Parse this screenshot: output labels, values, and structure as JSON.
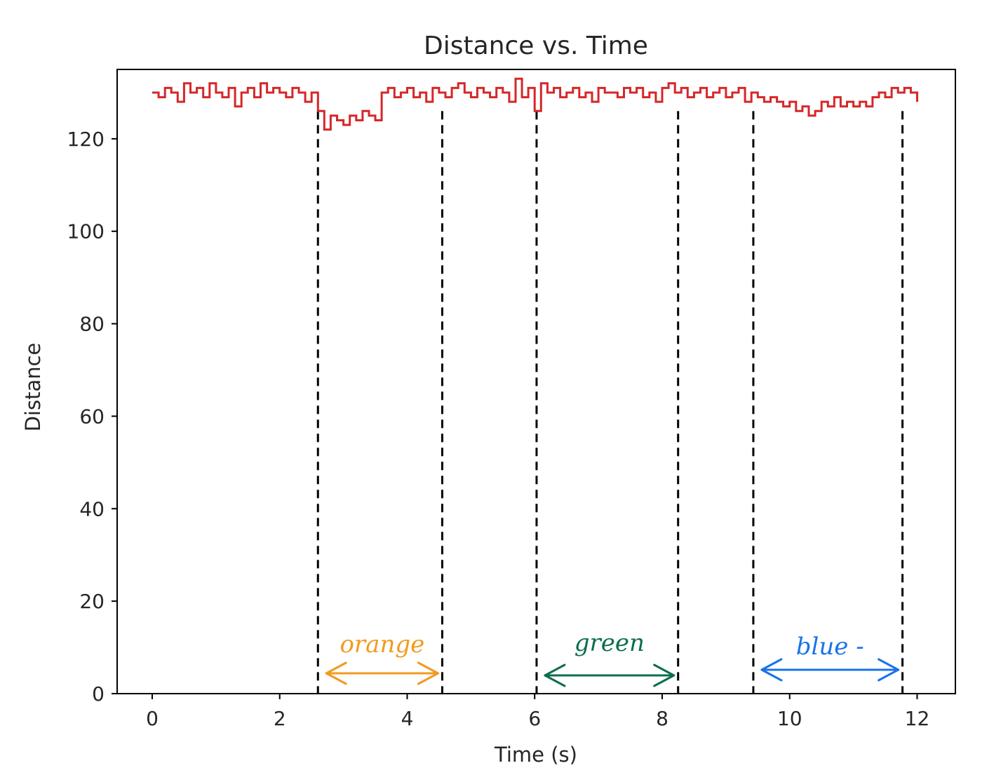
{
  "chart_data": {
    "type": "line",
    "title": "Distance vs. Time",
    "xlabel": "Time (s)",
    "ylabel": "Distance",
    "xlim": [
      -0.55,
      12.6
    ],
    "ylim": [
      0,
      135
    ],
    "xticks": [
      0,
      2,
      4,
      6,
      8,
      10,
      12
    ],
    "yticks": [
      0,
      20,
      40,
      60,
      80,
      100,
      120
    ],
    "grid": false,
    "line_color": "#d62728",
    "series": [
      {
        "x": [
          0.0,
          0.1,
          0.2,
          0.3,
          0.4,
          0.5,
          0.6,
          0.7,
          0.8,
          0.9,
          1.0,
          1.1,
          1.2,
          1.3,
          1.4,
          1.5,
          1.6,
          1.7,
          1.8,
          1.9,
          2.0,
          2.1,
          2.2,
          2.3,
          2.4,
          2.5,
          2.6,
          2.7,
          2.8,
          2.9,
          3.0,
          3.1,
          3.2,
          3.3,
          3.4,
          3.5,
          3.6,
          3.7,
          3.8,
          3.9,
          4.0,
          4.1,
          4.2,
          4.3,
          4.4,
          4.5,
          4.6,
          4.7,
          4.8,
          4.9,
          5.0,
          5.1,
          5.2,
          5.3,
          5.4,
          5.5,
          5.6,
          5.7,
          5.8,
          5.9,
          6.0,
          6.1,
          6.2,
          6.3,
          6.4,
          6.5,
          6.6,
          6.7,
          6.8,
          6.9,
          7.0,
          7.1,
          7.2,
          7.3,
          7.4,
          7.5,
          7.6,
          7.7,
          7.8,
          7.9,
          8.0,
          8.1,
          8.2,
          8.3,
          8.4,
          8.5,
          8.6,
          8.7,
          8.8,
          8.9,
          9.0,
          9.1,
          9.2,
          9.3,
          9.4,
          9.5,
          9.6,
          9.7,
          9.8,
          9.9,
          10.0,
          10.1,
          10.2,
          10.3,
          10.4,
          10.5,
          10.6,
          10.7,
          10.8,
          10.9,
          11.0,
          11.1,
          11.2,
          11.3,
          11.4,
          11.5,
          11.6,
          11.7,
          11.8,
          11.9,
          12.0
        ],
        "values": [
          130,
          129,
          131,
          130,
          128,
          132,
          130,
          131,
          129,
          132,
          130,
          129,
          131,
          127,
          130,
          131,
          129,
          132,
          130,
          131,
          130,
          129,
          131,
          130,
          128,
          130,
          126,
          122,
          125,
          124,
          123,
          125,
          124,
          126,
          125,
          124,
          130,
          131,
          129,
          130,
          131,
          129,
          130,
          128,
          131,
          130,
          129,
          131,
          132,
          130,
          129,
          131,
          130,
          129,
          131,
          130,
          128,
          133,
          129,
          131,
          126,
          132,
          130,
          131,
          129,
          130,
          131,
          129,
          130,
          128,
          131,
          130,
          130,
          129,
          131,
          130,
          131,
          129,
          130,
          128,
          131,
          132,
          130,
          131,
          129,
          130,
          131,
          129,
          130,
          131,
          129,
          130,
          131,
          128,
          130,
          129,
          128,
          129,
          128,
          127,
          128,
          126,
          127,
          125,
          126,
          128,
          127,
          129,
          127,
          128,
          127,
          128,
          127,
          129,
          130,
          129,
          131,
          130,
          131,
          130,
          128
        ]
      }
    ],
    "reference_lines_x": [
      2.6,
      4.55,
      6.03,
      8.25,
      9.43,
      11.77
    ],
    "annotations": [
      {
        "label": "orange",
        "x_start": 2.6,
        "x_end": 4.55,
        "color": "#f29a1f"
      },
      {
        "label": "green",
        "x_start": 6.03,
        "x_end": 8.25,
        "color": "#0e6e4c"
      },
      {
        "label": "blue -",
        "x_start": 9.43,
        "x_end": 11.77,
        "color": "#1a73e8"
      }
    ]
  }
}
